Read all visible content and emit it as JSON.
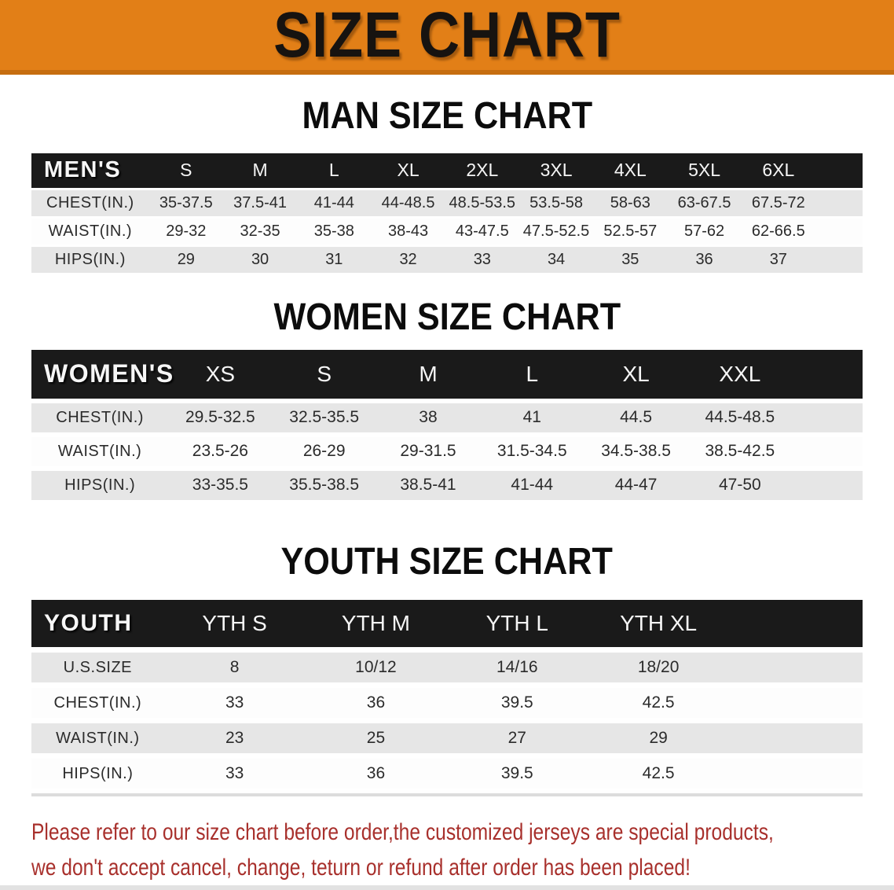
{
  "banner": {
    "title": "SIZE CHART"
  },
  "colors": {
    "banner_bg": "#E27F17",
    "banner_edge": "#C66E10",
    "header_bg": "#1A1A1A",
    "row_gray": "#E6E6E6",
    "note_red": "#A8302C"
  },
  "sections": {
    "men": {
      "title": "MAN SIZE CHART",
      "header_label": "MEN'S",
      "sizes": [
        "S",
        "M",
        "L",
        "XL",
        "2XL",
        "3XL",
        "4XL",
        "5XL",
        "6XL"
      ],
      "rows": [
        {
          "label": "CHEST(IN.)",
          "values": [
            "35-37.5",
            "37.5-41",
            "41-44",
            "44-48.5",
            "48.5-53.5",
            "53.5-58",
            "58-63",
            "63-67.5",
            "67.5-72"
          ]
        },
        {
          "label": "WAIST(IN.)",
          "values": [
            "29-32",
            "32-35",
            "35-38",
            "38-43",
            "43-47.5",
            "47.5-52.5",
            "52.5-57",
            "57-62",
            "62-66.5"
          ]
        },
        {
          "label": "HIPS(IN.)",
          "values": [
            "29",
            "30",
            "31",
            "32",
            "33",
            "34",
            "35",
            "36",
            "37"
          ]
        }
      ]
    },
    "women": {
      "title": "WOMEN SIZE CHART",
      "header_label": "WOMEN'S",
      "sizes": [
        "XS",
        "S",
        "M",
        "L",
        "XL",
        "XXL"
      ],
      "rows": [
        {
          "label": "CHEST(IN.)",
          "values": [
            "29.5-32.5",
            "32.5-35.5",
            "38",
            "41",
            "44.5",
            "44.5-48.5"
          ]
        },
        {
          "label": "WAIST(IN.)",
          "values": [
            "23.5-26",
            "26-29",
            "29-31.5",
            "31.5-34.5",
            "34.5-38.5",
            "38.5-42.5"
          ]
        },
        {
          "label": "HIPS(IN.)",
          "values": [
            "33-35.5",
            "35.5-38.5",
            "38.5-41",
            "41-44",
            "44-47",
            "47-50"
          ]
        }
      ]
    },
    "youth": {
      "title": "YOUTH SIZE CHART",
      "header_label": "YOUTH",
      "sizes": [
        "YTH S",
        "YTH M",
        "YTH L",
        "YTH XL"
      ],
      "rows": [
        {
          "label": "U.S.SIZE",
          "values": [
            "8",
            "10/12",
            "14/16",
            "18/20"
          ]
        },
        {
          "label": "CHEST(IN.)",
          "values": [
            "33",
            "36",
            "39.5",
            "42.5"
          ]
        },
        {
          "label": "WAIST(IN.)",
          "values": [
            "23",
            "25",
            "27",
            "29"
          ]
        },
        {
          "label": "HIPS(IN.)",
          "values": [
            "33",
            "36",
            "39.5",
            "42.5"
          ]
        }
      ]
    }
  },
  "footer": {
    "lines": [
      "Please refer to our size chart before order,the customized jerseys are special products,",
      "we don't accept cancel, change, teturn or refund after order has been placed!"
    ]
  }
}
